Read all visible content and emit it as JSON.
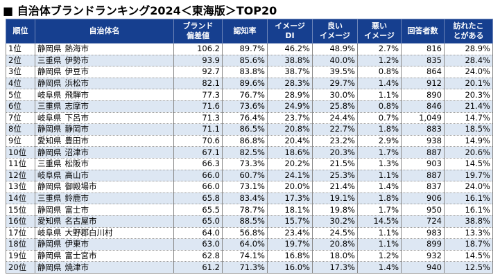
{
  "title": "■ 自治体ブランドランキング2024＜東海版＞TOP20",
  "table": {
    "header": [
      [
        "順位"
      ],
      [
        "自治体名"
      ],
      [
        "ブランド",
        "偏差値"
      ],
      [
        "認知率"
      ],
      [
        "イメージ",
        "DI"
      ],
      [
        "良い",
        "イメージ"
      ],
      [
        "悪い",
        "イメージ"
      ],
      [
        "回答者数"
      ],
      [
        "訪れたこ",
        "とがある"
      ]
    ],
    "rows": [
      [
        "1位",
        "静岡県",
        "熱海市",
        "106.2",
        "89.7%",
        "46.2%",
        "48.9%",
        "2.7%",
        "816",
        "28.9%"
      ],
      [
        "2位",
        "三重県",
        "伊勢市",
        "93.9",
        "85.6%",
        "38.8%",
        "40.0%",
        "1.2%",
        "835",
        "28.4%"
      ],
      [
        "3位",
        "静岡県",
        "伊豆市",
        "92.7",
        "83.8%",
        "38.7%",
        "39.5%",
        "0.8%",
        "864",
        "24.0%"
      ],
      [
        "4位",
        "静岡県",
        "浜松市",
        "82.1",
        "89.6%",
        "28.3%",
        "29.7%",
        "1.4%",
        "912",
        "20.1%"
      ],
      [
        "5位",
        "岐阜県",
        "飛騨市",
        "77.3",
        "76.7%",
        "28.9%",
        "30.0%",
        "1.1%",
        "890",
        "20.3%"
      ],
      [
        "6位",
        "三重県",
        "志摩市",
        "71.6",
        "73.6%",
        "24.9%",
        "25.8%",
        "0.8%",
        "846",
        "21.4%"
      ],
      [
        "7位",
        "岐阜県",
        "下呂市",
        "71.3",
        "76.4%",
        "23.7%",
        "24.4%",
        "0.7%",
        "1,049",
        "14.7%"
      ],
      [
        "8位",
        "静岡県",
        "静岡市",
        "71.1",
        "86.5%",
        "20.8%",
        "22.7%",
        "1.8%",
        "883",
        "18.5%"
      ],
      [
        "9位",
        "愛知県",
        "豊田市",
        "70.6",
        "86.8%",
        "20.4%",
        "23.2%",
        "2.9%",
        "938",
        "14.9%"
      ],
      [
        "10位",
        "静岡県",
        "沼津市",
        "67.1",
        "82.5%",
        "18.6%",
        "20.3%",
        "1.7%",
        "887",
        "20.6%"
      ],
      [
        "11位",
        "三重県",
        "松阪市",
        "66.3",
        "73.3%",
        "20.2%",
        "21.5%",
        "1.3%",
        "903",
        "14.5%"
      ],
      [
        "12位",
        "岐阜県",
        "高山市",
        "66.0",
        "60.7%",
        "24.1%",
        "25.3%",
        "1.1%",
        "887",
        "19.7%"
      ],
      [
        "13位",
        "静岡県",
        "御殿場市",
        "66.0",
        "73.1%",
        "20.0%",
        "21.4%",
        "1.4%",
        "837",
        "24.0%"
      ],
      [
        "14位",
        "三重県",
        "鈴鹿市",
        "65.8",
        "83.4%",
        "17.3%",
        "19.1%",
        "1.8%",
        "906",
        "16.1%"
      ],
      [
        "15位",
        "静岡県",
        "富士市",
        "65.5",
        "78.7%",
        "18.1%",
        "19.8%",
        "1.7%",
        "950",
        "16.1%"
      ],
      [
        "16位",
        "愛知県",
        "名古屋市",
        "65.0",
        "88.5%",
        "15.7%",
        "30.2%",
        "14.5%",
        "724",
        "38.8%"
      ],
      [
        "17位",
        "岐阜県",
        "大野郡白川村",
        "64.0",
        "56.8%",
        "23.4%",
        "24.5%",
        "1.1%",
        "983",
        "13.3%"
      ],
      [
        "18位",
        "静岡県",
        "伊東市",
        "63.0",
        "64.0%",
        "19.7%",
        "20.8%",
        "1.1%",
        "899",
        "18.7%"
      ],
      [
        "19位",
        "静岡県",
        "富士宮市",
        "62.8",
        "74.1%",
        "16.8%",
        "18.0%",
        "1.2%",
        "932",
        "14.5%"
      ],
      [
        "20位",
        "静岡県",
        "焼津市",
        "61.2",
        "71.3%",
        "16.0%",
        "17.3%",
        "1.4%",
        "940",
        "12.5%"
      ]
    ]
  }
}
